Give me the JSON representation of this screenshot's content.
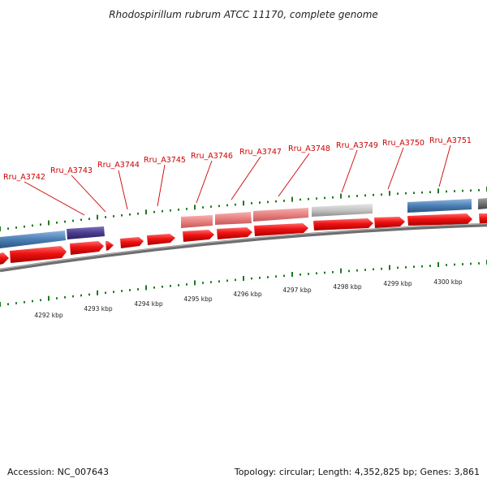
{
  "title": "Rhodospirillum rubrum ATCC 11170, complete genome",
  "footer": {
    "accession": "Accession: NC_007643",
    "stats": "Topology: circular; Length: 4,352,825 bp; Genes: 3,861"
  },
  "colors": {
    "backbone": "#808080",
    "cds": "#ee1111",
    "tick": "#1d7a1d",
    "label": "#cc0000",
    "callout": "#cc0000"
  },
  "gene_labels": [
    "Rru_A3742",
    "Rru_A3743",
    "Rru_A3744",
    "Rru_A3745",
    "Rru_A3746",
    "Rru_A3747",
    "Rru_A3748",
    "Rru_A3749",
    "Rru_A3750",
    "Rru_A3751"
  ],
  "position_labels": [
    "4292 kbp",
    "4293 kbp",
    "4294 kbp",
    "4295 kbp",
    "4296 kbp",
    "4297 kbp",
    "4298 kbp",
    "4299 kbp",
    "4300 kbp"
  ],
  "feature_track_colors": [
    "#4a7fb5",
    "#4b3c8c",
    "#e88080",
    "#e88080",
    "#e88080",
    "#c0c0c0",
    "#4a7fb5",
    "#707070"
  ]
}
